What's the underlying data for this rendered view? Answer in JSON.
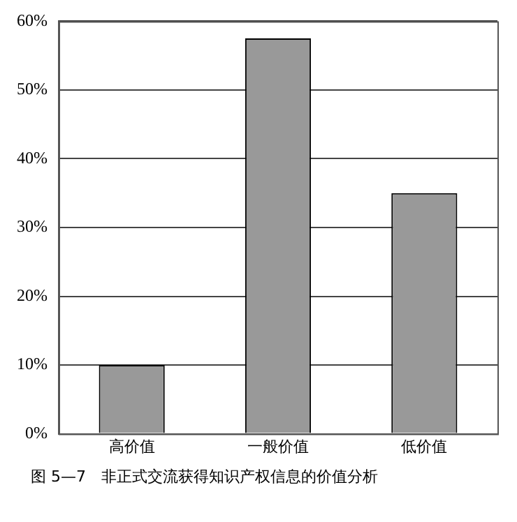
{
  "chart_data": {
    "type": "bar",
    "title": "图 5—7　非正式交流获得知识产权信息的价值分析",
    "categories": [
      "高价值",
      "一般价值",
      "低价值"
    ],
    "values": [
      10,
      57.5,
      35
    ],
    "color": "#999999",
    "ylim": [
      0,
      60
    ],
    "yticks": [
      {
        "value": 0,
        "label": "0%"
      },
      {
        "value": 10,
        "label": "10%"
      },
      {
        "value": 20,
        "label": "20%"
      },
      {
        "value": 30,
        "label": "30%"
      },
      {
        "value": 40,
        "label": "40%"
      },
      {
        "value": 50,
        "label": "50%"
      },
      {
        "value": 60,
        "label": "60%"
      }
    ],
    "grid": "y",
    "legend": false
  }
}
